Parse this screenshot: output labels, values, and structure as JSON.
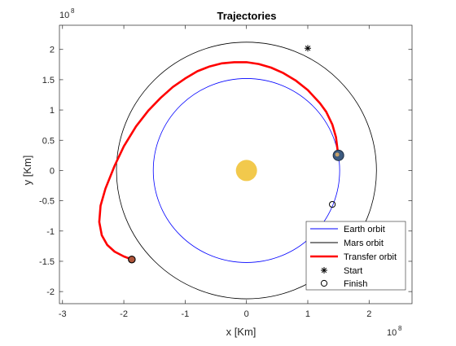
{
  "chart_data": {
    "type": "line",
    "title": "Trajectories",
    "xlabel": "x [Km]",
    "ylabel": "y [Km]",
    "x_exponent_label": "10",
    "x_exponent_power": "8",
    "y_exponent_label": "10",
    "y_exponent_power": "8",
    "xlim": [
      -3.05,
      2.7
    ],
    "ylim": [
      -2.2,
      2.4
    ],
    "x_ticks": [
      -3,
      -2,
      -1,
      0,
      1,
      2
    ],
    "x_tick_labels": [
      "-3",
      "-2",
      "-1",
      "0",
      "1",
      "2"
    ],
    "y_ticks": [
      -2,
      -1.5,
      -1,
      -0.5,
      0,
      0.5,
      1,
      1.5,
      2
    ],
    "y_tick_labels": [
      "-2",
      "-1.5",
      "-1",
      "-0.5",
      "0",
      "0.5",
      "1",
      "1.5",
      "2"
    ],
    "grid": false,
    "legend_position": "bottom-right",
    "sun": {
      "x": 0,
      "y": 0,
      "color": "#f2c94c"
    },
    "series": [
      {
        "name": "Earth orbit",
        "kind": "circle",
        "center": [
          0,
          0
        ],
        "radius": 1.52,
        "color": "#0000ff"
      },
      {
        "name": "Mars orbit",
        "kind": "circle",
        "center": [
          0,
          0
        ],
        "radius": 2.12,
        "color": "#000000"
      },
      {
        "name": "Transfer orbit",
        "kind": "polyline",
        "color": "#ff0000",
        "x": [
          1.495,
          1.46,
          1.4,
          1.3,
          1.2,
          1.0,
          0.8,
          0.6,
          0.4,
          0.2,
          0.0,
          -0.2,
          -0.4,
          -0.6,
          -0.8,
          -1.0,
          -1.2,
          -1.4,
          -1.6,
          -1.8,
          -2.0,
          -2.15,
          -2.3,
          -2.38,
          -2.4,
          -2.36,
          -2.27,
          -2.15,
          -2.0,
          -1.87
        ],
        "y": [
          0.26,
          0.55,
          0.76,
          0.97,
          1.11,
          1.33,
          1.49,
          1.61,
          1.7,
          1.76,
          1.79,
          1.79,
          1.77,
          1.72,
          1.64,
          1.52,
          1.38,
          1.2,
          0.99,
          0.73,
          0.4,
          0.08,
          -0.3,
          -0.58,
          -0.85,
          -1.07,
          -1.23,
          -1.34,
          -1.42,
          -1.47
        ]
      },
      {
        "name": "Start",
        "kind": "marker",
        "marker": "asterisk",
        "color": "#000000",
        "x": [
          1.0
        ],
        "y": [
          2.02
        ]
      },
      {
        "name": "Finish",
        "kind": "marker",
        "marker": "circle",
        "color": "#000000",
        "x": [
          1.4
        ],
        "y": [
          -0.56
        ]
      }
    ],
    "planets": [
      {
        "body": "earth",
        "x": 1.5,
        "y": 0.25,
        "color": "#3d5b80"
      },
      {
        "body": "mars",
        "x": -1.87,
        "y": -1.47,
        "color": "#b0553a"
      }
    ]
  }
}
